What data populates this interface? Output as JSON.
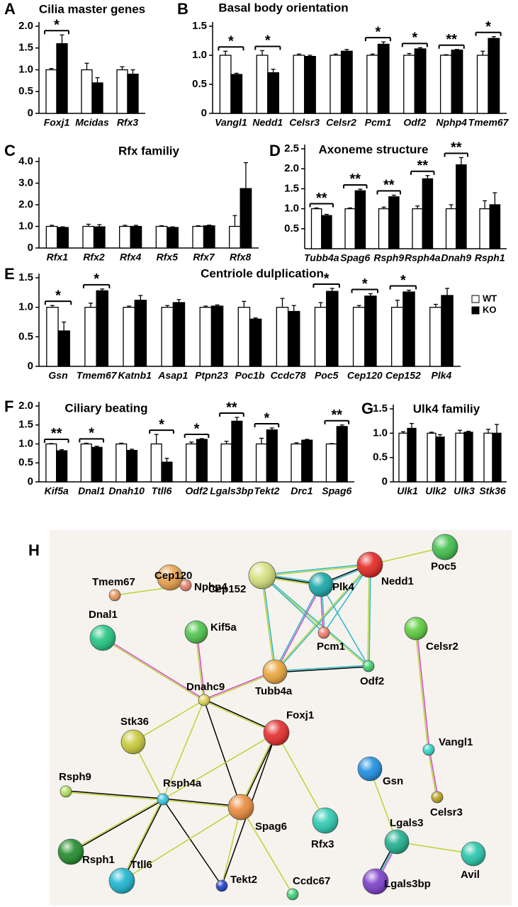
{
  "chart_data": [
    {
      "type": "bar",
      "panel": "A",
      "title": "Cilia master genes",
      "categories": [
        "Foxj1",
        "Mcidas",
        "Rfx3"
      ],
      "series": [
        {
          "color": "#ffffff",
          "values": [
            1.0,
            1.0,
            1.0
          ],
          "errors": [
            0.03,
            0.15,
            0.07
          ]
        },
        {
          "color": "#000000",
          "values": [
            1.6,
            0.7,
            0.9
          ],
          "errors": [
            0.2,
            0.12,
            0.1
          ]
        }
      ],
      "significance": [
        "*",
        null,
        null
      ],
      "ylim": [
        0,
        2
      ],
      "yticks": [
        0,
        0.5,
        {
          "value": 1,
          "label": "1.0"
        },
        1.5,
        {
          "value": 2,
          "label": "2.0"
        }
      ]
    },
    {
      "type": "bar",
      "panel": "B",
      "title": "Basal body orientation",
      "categories": [
        "Vangl1",
        "Nedd1",
        "Celsr3",
        "Celsr2",
        "Pcm1",
        "Odf2",
        "Nphp4",
        "Tmem67"
      ],
      "series": [
        {
          "color": "#ffffff",
          "values": [
            1.0,
            1.0,
            1.0,
            1.0,
            1.0,
            1.0,
            1.0,
            1.0
          ],
          "errors": [
            0.07,
            0.08,
            0.02,
            0.02,
            0.02,
            0.03,
            0.01,
            0.07
          ]
        },
        {
          "color": "#000000",
          "values": [
            0.67,
            0.7,
            0.98,
            1.07,
            1.19,
            1.11,
            1.09,
            1.29
          ],
          "errors": [
            0.02,
            0.06,
            0.02,
            0.03,
            0.04,
            0.02,
            0.01,
            0.03
          ]
        }
      ],
      "significance": [
        "*",
        "*",
        null,
        null,
        "*",
        "*",
        "**",
        "*"
      ],
      "ylim": [
        0,
        1.5
      ],
      "yticks": [
        0,
        0.5,
        {
          "value": 1,
          "label": "1.0"
        },
        1.5
      ]
    },
    {
      "type": "bar",
      "panel": "C",
      "title": "Rfx familiy",
      "categories": [
        "Rfx1",
        "Rfx2",
        "Rfx4",
        "Rfx5",
        "Rfx7",
        "Rfx8"
      ],
      "series": [
        {
          "color": "#ffffff",
          "values": [
            1.0,
            1.0,
            1.0,
            1.0,
            1.0,
            1.0
          ],
          "errors": [
            0.05,
            0.1,
            0.05,
            0.03,
            0.03,
            0.5
          ]
        },
        {
          "color": "#000000",
          "values": [
            0.95,
            0.98,
            1.0,
            0.95,
            1.03,
            2.75
          ],
          "errors": [
            0.03,
            0.1,
            0.05,
            0.03,
            0.03,
            1.2
          ]
        }
      ],
      "ylim": [
        0,
        4
      ],
      "yticks": [
        0,
        {
          "value": 1,
          "label": "1.0"
        },
        {
          "value": 2,
          "label": "2.0"
        },
        {
          "value": 3,
          "label": "3.0"
        },
        {
          "value": 4,
          "label": "4.0"
        }
      ]
    },
    {
      "type": "bar",
      "panel": "D",
      "title": "Axoneme structure",
      "categories": [
        "Tubb4a",
        "Spag6",
        "Rsph9",
        "Rsph4a",
        "Dnah9",
        "Rsph1"
      ],
      "series": [
        {
          "color": "#ffffff",
          "values": [
            1.0,
            1.0,
            1.0,
            1.0,
            1.0,
            1.0
          ],
          "errors": [
            0.02,
            0.02,
            0.04,
            0.07,
            0.1,
            0.2
          ]
        },
        {
          "color": "#000000",
          "values": [
            0.83,
            1.45,
            1.3,
            1.75,
            2.1,
            1.1
          ],
          "errors": [
            0.03,
            0.04,
            0.04,
            0.08,
            0.18,
            0.3
          ]
        }
      ],
      "significance": [
        "**",
        "**",
        "**",
        "**",
        "**",
        null
      ],
      "ylim": [
        0,
        2.5
      ],
      "yticks": [
        0.5,
        {
          "value": 1,
          "label": "1.0"
        },
        1.5,
        {
          "value": 2,
          "label": "2.0"
        },
        2.5
      ]
    },
    {
      "type": "bar",
      "panel": "E",
      "title": "Centriole dulplication",
      "categories": [
        "Gsn",
        "Tmem67",
        "Katnb1",
        "Asap1",
        "Ptpn23",
        "Poc1b",
        "Ccdc78",
        "Poc5",
        "Cep120",
        "Cep152",
        "Plk4"
      ],
      "series": [
        {
          "name": "WT",
          "color": "#ffffff",
          "values": [
            1.0,
            1.0,
            1.0,
            1.0,
            1.0,
            1.0,
            1.0,
            1.0,
            1.0,
            1.0,
            1.0
          ],
          "errors": [
            0.03,
            0.07,
            0.02,
            0.03,
            0.02,
            0.1,
            0.15,
            0.08,
            0.03,
            0.12,
            0.05
          ]
        },
        {
          "name": "KO",
          "color": "#000000",
          "values": [
            0.6,
            1.28,
            1.12,
            1.08,
            1.02,
            0.8,
            0.93,
            1.27,
            1.19,
            1.26,
            1.2
          ],
          "errors": [
            0.15,
            0.03,
            0.08,
            0.05,
            0.02,
            0.02,
            0.1,
            0.05,
            0.04,
            0.03,
            0.12
          ]
        }
      ],
      "significance": [
        "*",
        "*",
        null,
        null,
        null,
        null,
        null,
        "*",
        "*",
        "*",
        null
      ],
      "legend": "right",
      "ylim": [
        0,
        1.5
      ],
      "yticks": [
        0,
        0.5,
        {
          "value": 1,
          "label": "1.0"
        },
        1.5
      ]
    },
    {
      "type": "bar",
      "panel": "F",
      "title": "Ciliary beating",
      "categories": [
        "Kif5a",
        "Dnal1",
        "Dnah10",
        "Ttll6",
        "Odf2",
        "Lgals3bp",
        "Tekt2",
        "Drc1",
        "Spag6"
      ],
      "series": [
        {
          "color": "#ffffff",
          "values": [
            1.0,
            1.0,
            1.0,
            1.0,
            1.0,
            1.0,
            1.0,
            1.0,
            1.0
          ],
          "errors": [
            0.01,
            0.02,
            0.02,
            0.25,
            0.05,
            0.07,
            0.15,
            0.03,
            0.01
          ]
        },
        {
          "color": "#000000",
          "values": [
            0.82,
            0.91,
            0.83,
            0.52,
            1.12,
            1.6,
            1.37,
            1.1,
            1.46
          ],
          "errors": [
            0.03,
            0.03,
            0.03,
            0.1,
            0.02,
            0.1,
            0.05,
            0.02,
            0.04
          ]
        }
      ],
      "significance": [
        "**",
        "*",
        null,
        "*",
        "*",
        "**",
        "*",
        null,
        "**"
      ],
      "ylim": [
        0,
        2
      ],
      "yticks": [
        0,
        0.5,
        {
          "value": 1,
          "label": "1.0"
        },
        1.5,
        {
          "value": 2,
          "label": "2.0"
        }
      ]
    },
    {
      "type": "bar",
      "panel": "G",
      "title": "Ulk4 familiy",
      "categories": [
        "Ulk1",
        "Ulk2",
        "Ulk3",
        "Stk36"
      ],
      "series": [
        {
          "color": "#ffffff",
          "values": [
            1.0,
            1.0,
            1.0,
            1.0
          ],
          "errors": [
            0.03,
            0.02,
            0.06,
            0.08
          ]
        },
        {
          "color": "#000000",
          "values": [
            1.1,
            0.92,
            1.02,
            1.0
          ],
          "errors": [
            0.1,
            0.05,
            0.02,
            0.18
          ]
        }
      ],
      "ylim": [
        0,
        1.5
      ],
      "yticks": [
        0,
        0.5,
        {
          "value": 1,
          "label": "1.0"
        },
        1.5
      ]
    }
  ],
  "network": {
    "panel": "H",
    "nodes": [
      {
        "label": "Cep120",
        "color": "#e8a04a"
      },
      {
        "label": "Cep152",
        "color": "#d4e07a"
      },
      {
        "label": "Nedd1",
        "color": "#e3241f"
      },
      {
        "label": "Poc5",
        "color": "#3fbf4a"
      },
      {
        "label": "Plk4",
        "color": "#16a6a6"
      },
      {
        "label": "Tmem67",
        "color": "#e8955a"
      },
      {
        "label": "Nphp4",
        "color": "#e8806a"
      },
      {
        "label": "Dnal1",
        "color": "#1fc47f"
      },
      {
        "label": "Kif5a",
        "color": "#4cc24a"
      },
      {
        "label": "Pcm1",
        "color": "#ef7b6b"
      },
      {
        "label": "Celsr2",
        "color": "#5ccc3e"
      },
      {
        "label": "Dnahc9",
        "color": "#e0d25a"
      },
      {
        "label": "Tubb4a",
        "color": "#e8a43a"
      },
      {
        "label": "Odf2",
        "color": "#3ccf6a"
      },
      {
        "label": "Stk36",
        "color": "#c9c93a"
      },
      {
        "label": "Foxj1",
        "color": "#e52a2a"
      },
      {
        "label": "Vangl1",
        "color": "#30d4c4"
      },
      {
        "label": "Rsph9",
        "color": "#b4e05a"
      },
      {
        "label": "Rsph4a",
        "color": "#35c6e0"
      },
      {
        "label": "Spag6",
        "color": "#ea8a3a"
      },
      {
        "label": "Gsn",
        "color": "#1a8ee0"
      },
      {
        "label": "Celsr3",
        "color": "#b8a420"
      },
      {
        "label": "Rfx3",
        "color": "#2cc8b0"
      },
      {
        "label": "Lgals3",
        "color": "#1cae8c"
      },
      {
        "label": "Avil",
        "color": "#26c4a8"
      },
      {
        "label": "Rsph1",
        "color": "#1e8a2a"
      },
      {
        "label": "Ttll6",
        "color": "#1ab4cf"
      },
      {
        "label": "Tekt2",
        "color": "#1c3cc8"
      },
      {
        "label": "Ccdc67",
        "color": "#3ecf7a"
      },
      {
        "label": "Lgals3bp",
        "color": "#7a3cc8"
      }
    ],
    "edges": [
      {
        "source": "Cep152",
        "target": "Plk4",
        "colors": [
          "#2bb6c9",
          "#000000",
          "#b8d432"
        ]
      },
      {
        "source": "Cep152",
        "target": "Nedd1",
        "colors": [
          "#2bb6c9",
          "#b8d432"
        ]
      },
      {
        "source": "Cep152",
        "target": "Odf2",
        "colors": [
          "#2bb6c9",
          "#b8d432"
        ]
      },
      {
        "source": "Cep152",
        "target": "Pcm1",
        "colors": [
          "#2bb6c9"
        ]
      },
      {
        "source": "Cep152",
        "target": "Tubb4a",
        "colors": [
          "#2bb6c9",
          "#b8d432"
        ]
      },
      {
        "source": "Plk4",
        "target": "Nedd1",
        "colors": [
          "#000000",
          "#2bb6c9"
        ]
      },
      {
        "source": "Plk4",
        "target": "Tubb4a",
        "colors": [
          "#d946c8",
          "#2bb6c9"
        ]
      },
      {
        "source": "Plk4",
        "target": "Odf2",
        "colors": [
          "#2bb6c9"
        ]
      },
      {
        "source": "Plk4",
        "target": "Pcm1",
        "colors": [
          "#2bb6c9",
          "#d946c8"
        ]
      },
      {
        "source": "Nedd1",
        "target": "Tubb4a",
        "colors": [
          "#2bb6c9",
          "#b8d432"
        ]
      },
      {
        "source": "Nedd1",
        "target": "Odf2",
        "colors": [
          "#2bb6c9",
          "#b8d432"
        ]
      },
      {
        "source": "Nedd1",
        "target": "Pcm1",
        "colors": [
          "#2bb6c9"
        ]
      },
      {
        "source": "Nedd1",
        "target": "Poc5",
        "colors": [
          "#b8d432"
        ]
      },
      {
        "source": "Tubb4a",
        "target": "Odf2",
        "colors": [
          "#2bb6c9",
          "#000000"
        ]
      },
      {
        "source": "Tmem67",
        "target": "Nphp4",
        "colors": [
          "#b8d432"
        ]
      },
      {
        "source": "Dnal1",
        "target": "Dnahc9",
        "colors": [
          "#d946c8",
          "#b8d432"
        ]
      },
      {
        "source": "Kif5a",
        "target": "Dnahc9",
        "colors": [
          "#d946c8",
          "#b8d432"
        ]
      },
      {
        "source": "Dnahc9",
        "target": "Tubb4a",
        "colors": [
          "#d946c8",
          "#b8d432"
        ]
      },
      {
        "source": "Dnahc9",
        "target": "Foxj1",
        "colors": [
          "#000000",
          "#b8d432"
        ]
      },
      {
        "source": "Dnahc9",
        "target": "Stk36",
        "colors": [
          "#b8d432"
        ]
      },
      {
        "source": "Dnahc9",
        "target": "Rsph4a",
        "colors": [
          "#b8d432"
        ]
      },
      {
        "source": "Dnahc9",
        "target": "Spag6",
        "colors": [
          "#000000"
        ]
      },
      {
        "source": "Foxj1",
        "target": "Spag6",
        "colors": [
          "#000000",
          "#b8d432"
        ]
      },
      {
        "source": "Foxj1",
        "target": "Rsph4a",
        "colors": [
          "#b8d432"
        ]
      },
      {
        "source": "Foxj1",
        "target": "Rfx3",
        "colors": [
          "#b8d432"
        ]
      },
      {
        "source": "Foxj1",
        "target": "Tekt2",
        "colors": [
          "#000000"
        ]
      },
      {
        "source": "Stk36",
        "target": "Rsph4a",
        "colors": [
          "#b8d432"
        ]
      },
      {
        "source": "Rsph9",
        "target": "Rsph4a",
        "colors": [
          "#000000",
          "#b8d432"
        ]
      },
      {
        "source": "Rsph4a",
        "target": "Spag6",
        "colors": [
          "#000000",
          "#b8d432"
        ]
      },
      {
        "source": "Rsph4a",
        "target": "Rsph1",
        "colors": [
          "#000000",
          "#b8d432"
        ]
      },
      {
        "source": "Rsph4a",
        "target": "Ttll6",
        "colors": [
          "#000000",
          "#b8d432"
        ]
      },
      {
        "source": "Rsph4a",
        "target": "Tekt2",
        "colors": [
          "#000000"
        ]
      },
      {
        "source": "Spag6",
        "target": "Tekt2",
        "colors": [
          "#b8d432"
        ]
      },
      {
        "source": "Spag6",
        "target": "Ccdc67",
        "colors": [
          "#b8d432"
        ]
      },
      {
        "source": "Spag6",
        "target": "Ttll6",
        "colors": [
          "#b8d432"
        ]
      },
      {
        "source": "Celsr2",
        "target": "Vangl1",
        "colors": [
          "#d946c8",
          "#b8d432"
        ]
      },
      {
        "source": "Vangl1",
        "target": "Celsr3",
        "colors": [
          "#d946c8",
          "#b8d432"
        ]
      },
      {
        "source": "Gsn",
        "target": "Lgals3",
        "colors": [
          "#b8d432"
        ]
      },
      {
        "source": "Lgals3",
        "target": "Avil",
        "colors": [
          "#b8d432"
        ]
      },
      {
        "source": "Lgals3",
        "target": "Lgals3bp",
        "colors": [
          "#d946c8",
          "#2bb6c9",
          "#000000"
        ]
      }
    ]
  }
}
